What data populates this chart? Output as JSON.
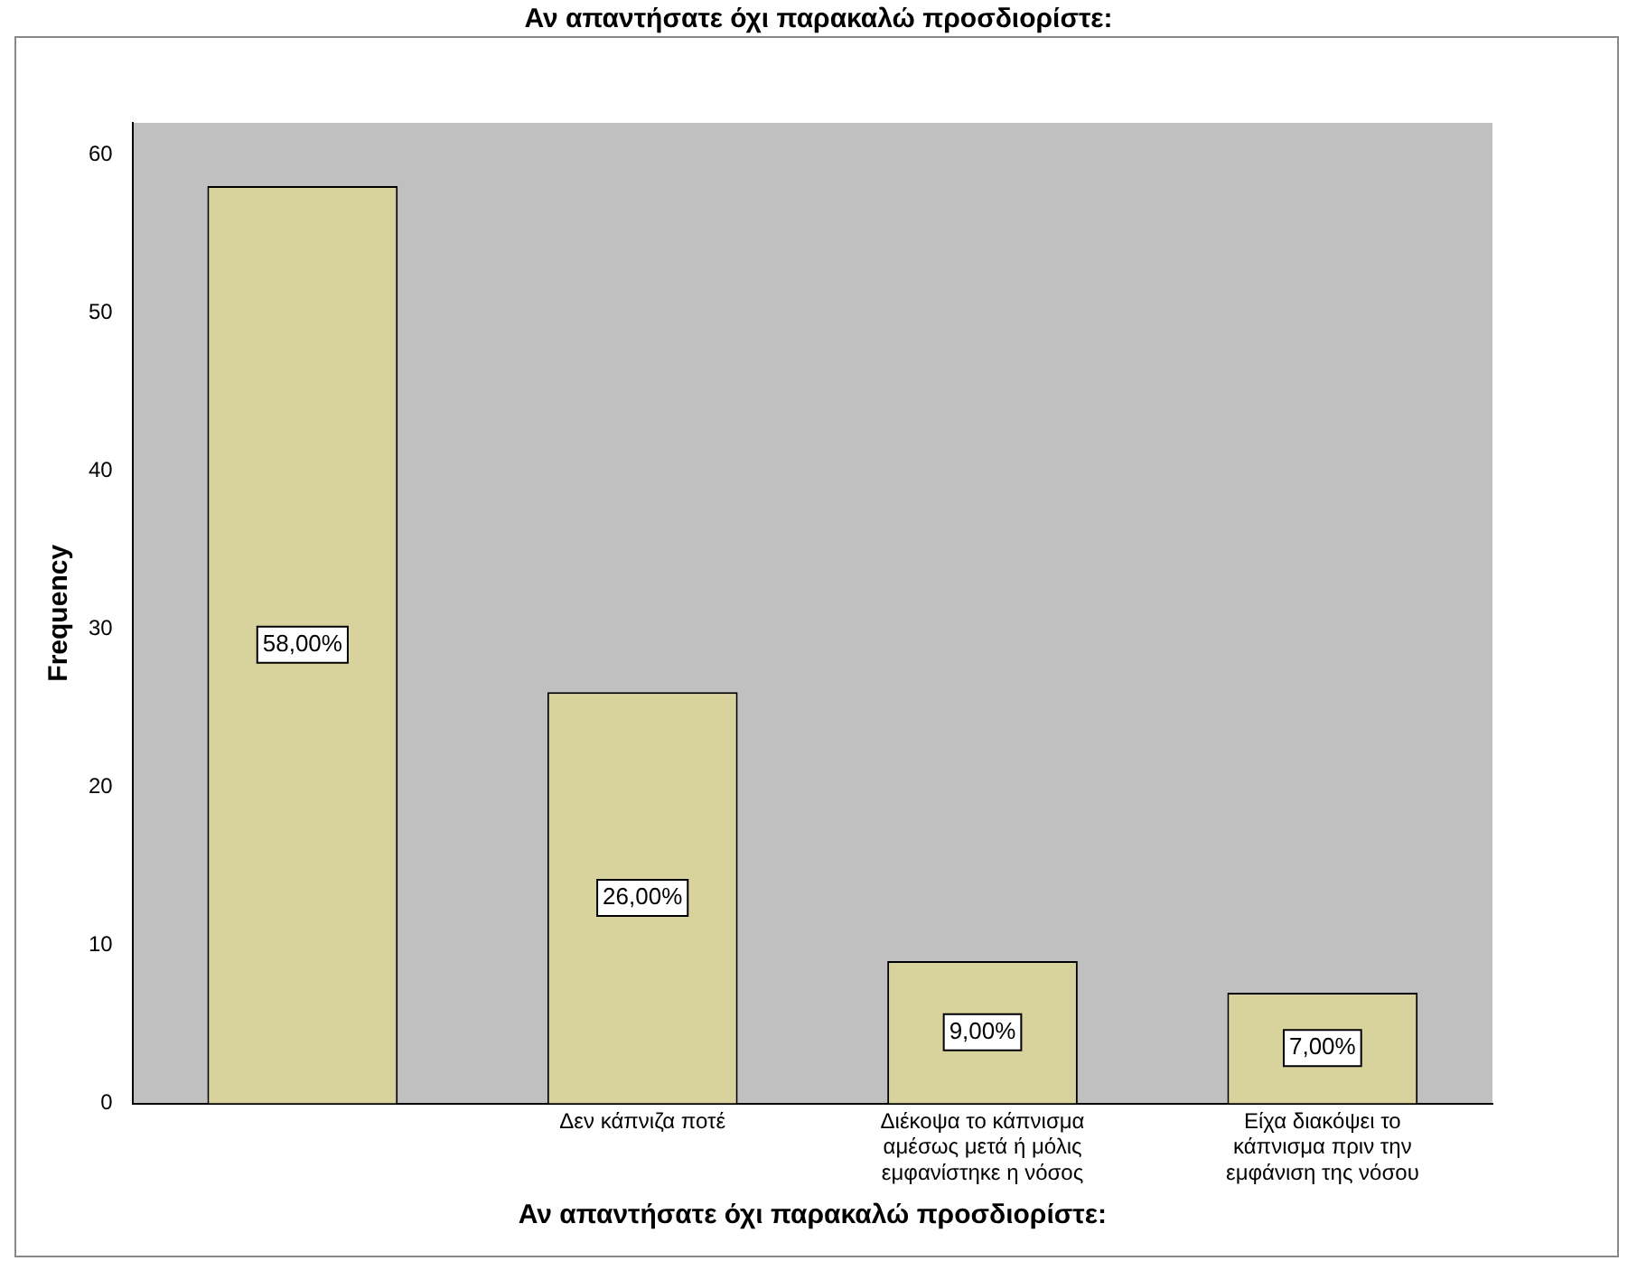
{
  "chart_data": {
    "type": "bar",
    "title": "Αν απαντήσατε όχι παρακαλώ προσδιορίστε:",
    "xlabel": "Αν απαντήσατε όχι παρακαλώ προσδιορίστε:",
    "ylabel": "Frequency",
    "categories": [
      null,
      "Δεν κάπνιζα ποτέ",
      "Διέκοψα το κάπνισμα αμέσως μετά ή μόλις εμφανίστηκε η νόσος",
      "Είχα διακόψει το κάπνισμα πριν την εμφάνιση της νόσου"
    ],
    "values": [
      58,
      26,
      9,
      7
    ],
    "value_labels": [
      "58,00%",
      "26,00%",
      "9,00%",
      "7,00%"
    ],
    "color": "#d8d29c",
    "ylim": [
      0,
      62
    ],
    "yticks": [
      0,
      10,
      20,
      30,
      40,
      50,
      60
    ],
    "grid": false,
    "legend": false
  }
}
